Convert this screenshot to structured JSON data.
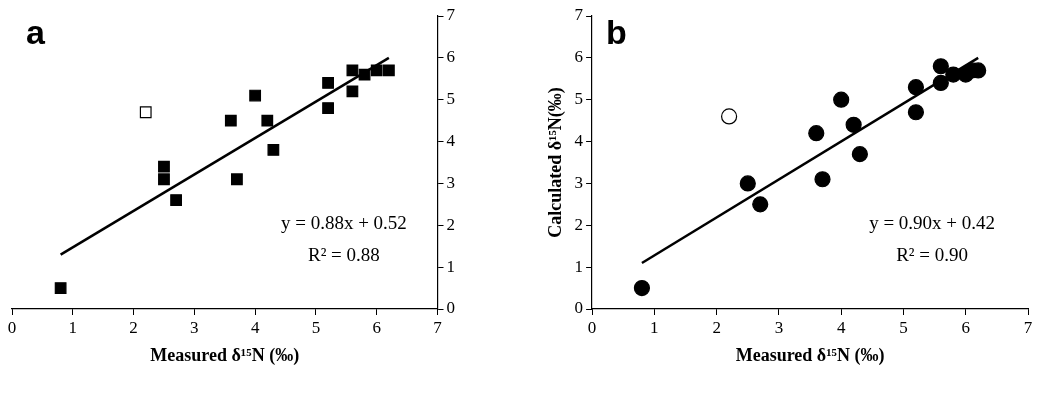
{
  "chart_data": [
    {
      "type": "scatter",
      "title": "a",
      "x_label": "Measured δ¹⁵N (‰)",
      "xlim": [
        0,
        7
      ],
      "xticks": [
        0,
        1,
        2,
        3,
        4,
        5,
        6,
        7
      ],
      "ylim": [
        0,
        7
      ],
      "yticks": [
        0,
        1,
        2,
        3,
        4,
        5,
        6,
        7
      ],
      "grid": false,
      "annotations": [
        "y = 0.88x + 0.52",
        "R² = 0.88"
      ],
      "series": [
        {
          "marker": "square",
          "color": "#000000",
          "x": [
            0.8,
            2.5,
            2.5,
            2.7,
            3.6,
            3.7,
            4.0,
            4.2,
            4.3,
            5.2,
            5.2,
            5.6,
            5.6,
            5.8,
            6.0,
            6.2
          ],
          "values": [
            0.5,
            3.4,
            3.1,
            2.6,
            4.5,
            3.1,
            5.1,
            4.5,
            3.8,
            5.4,
            4.8,
            5.7,
            5.2,
            5.6,
            5.7,
            5.7
          ]
        },
        {
          "marker": "open_square",
          "color": "#000000",
          "x": [
            2.2
          ],
          "values": [
            4.7
          ]
        },
        {
          "type": "line",
          "color": "#000000",
          "x": [
            0.8,
            6.2
          ],
          "values": [
            1.3,
            6.0
          ]
        }
      ]
    },
    {
      "type": "scatter",
      "title": "b",
      "x_label": "Measured δ¹⁵N (‰)",
      "y_label": "Calculated δ¹⁵N(‰)",
      "xlim": [
        0,
        7
      ],
      "xticks": [
        0,
        1,
        2,
        3,
        4,
        5,
        6,
        7
      ],
      "ylim": [
        0,
        7
      ],
      "yticks": [
        0,
        1,
        2,
        3,
        4,
        5,
        6,
        7
      ],
      "grid": false,
      "annotations": [
        "y = 0.90x + 0.42",
        "R² = 0.90"
      ],
      "series": [
        {
          "marker": "circle",
          "color": "#000000",
          "x": [
            0.8,
            2.5,
            2.7,
            3.6,
            3.7,
            4.0,
            4.2,
            4.3,
            5.2,
            5.2,
            5.6,
            5.6,
            5.8,
            6.0,
            6.1,
            6.2
          ],
          "values": [
            0.5,
            3.0,
            2.5,
            4.2,
            3.1,
            5.0,
            4.4,
            3.7,
            5.3,
            4.7,
            5.8,
            5.4,
            5.6,
            5.6,
            5.7,
            5.7
          ]
        },
        {
          "marker": "open_circle",
          "color": "#000000",
          "x": [
            2.2
          ],
          "values": [
            4.6
          ]
        },
        {
          "type": "line",
          "color": "#000000",
          "x": [
            0.8,
            6.2
          ],
          "values": [
            1.1,
            6.0
          ]
        }
      ]
    }
  ]
}
